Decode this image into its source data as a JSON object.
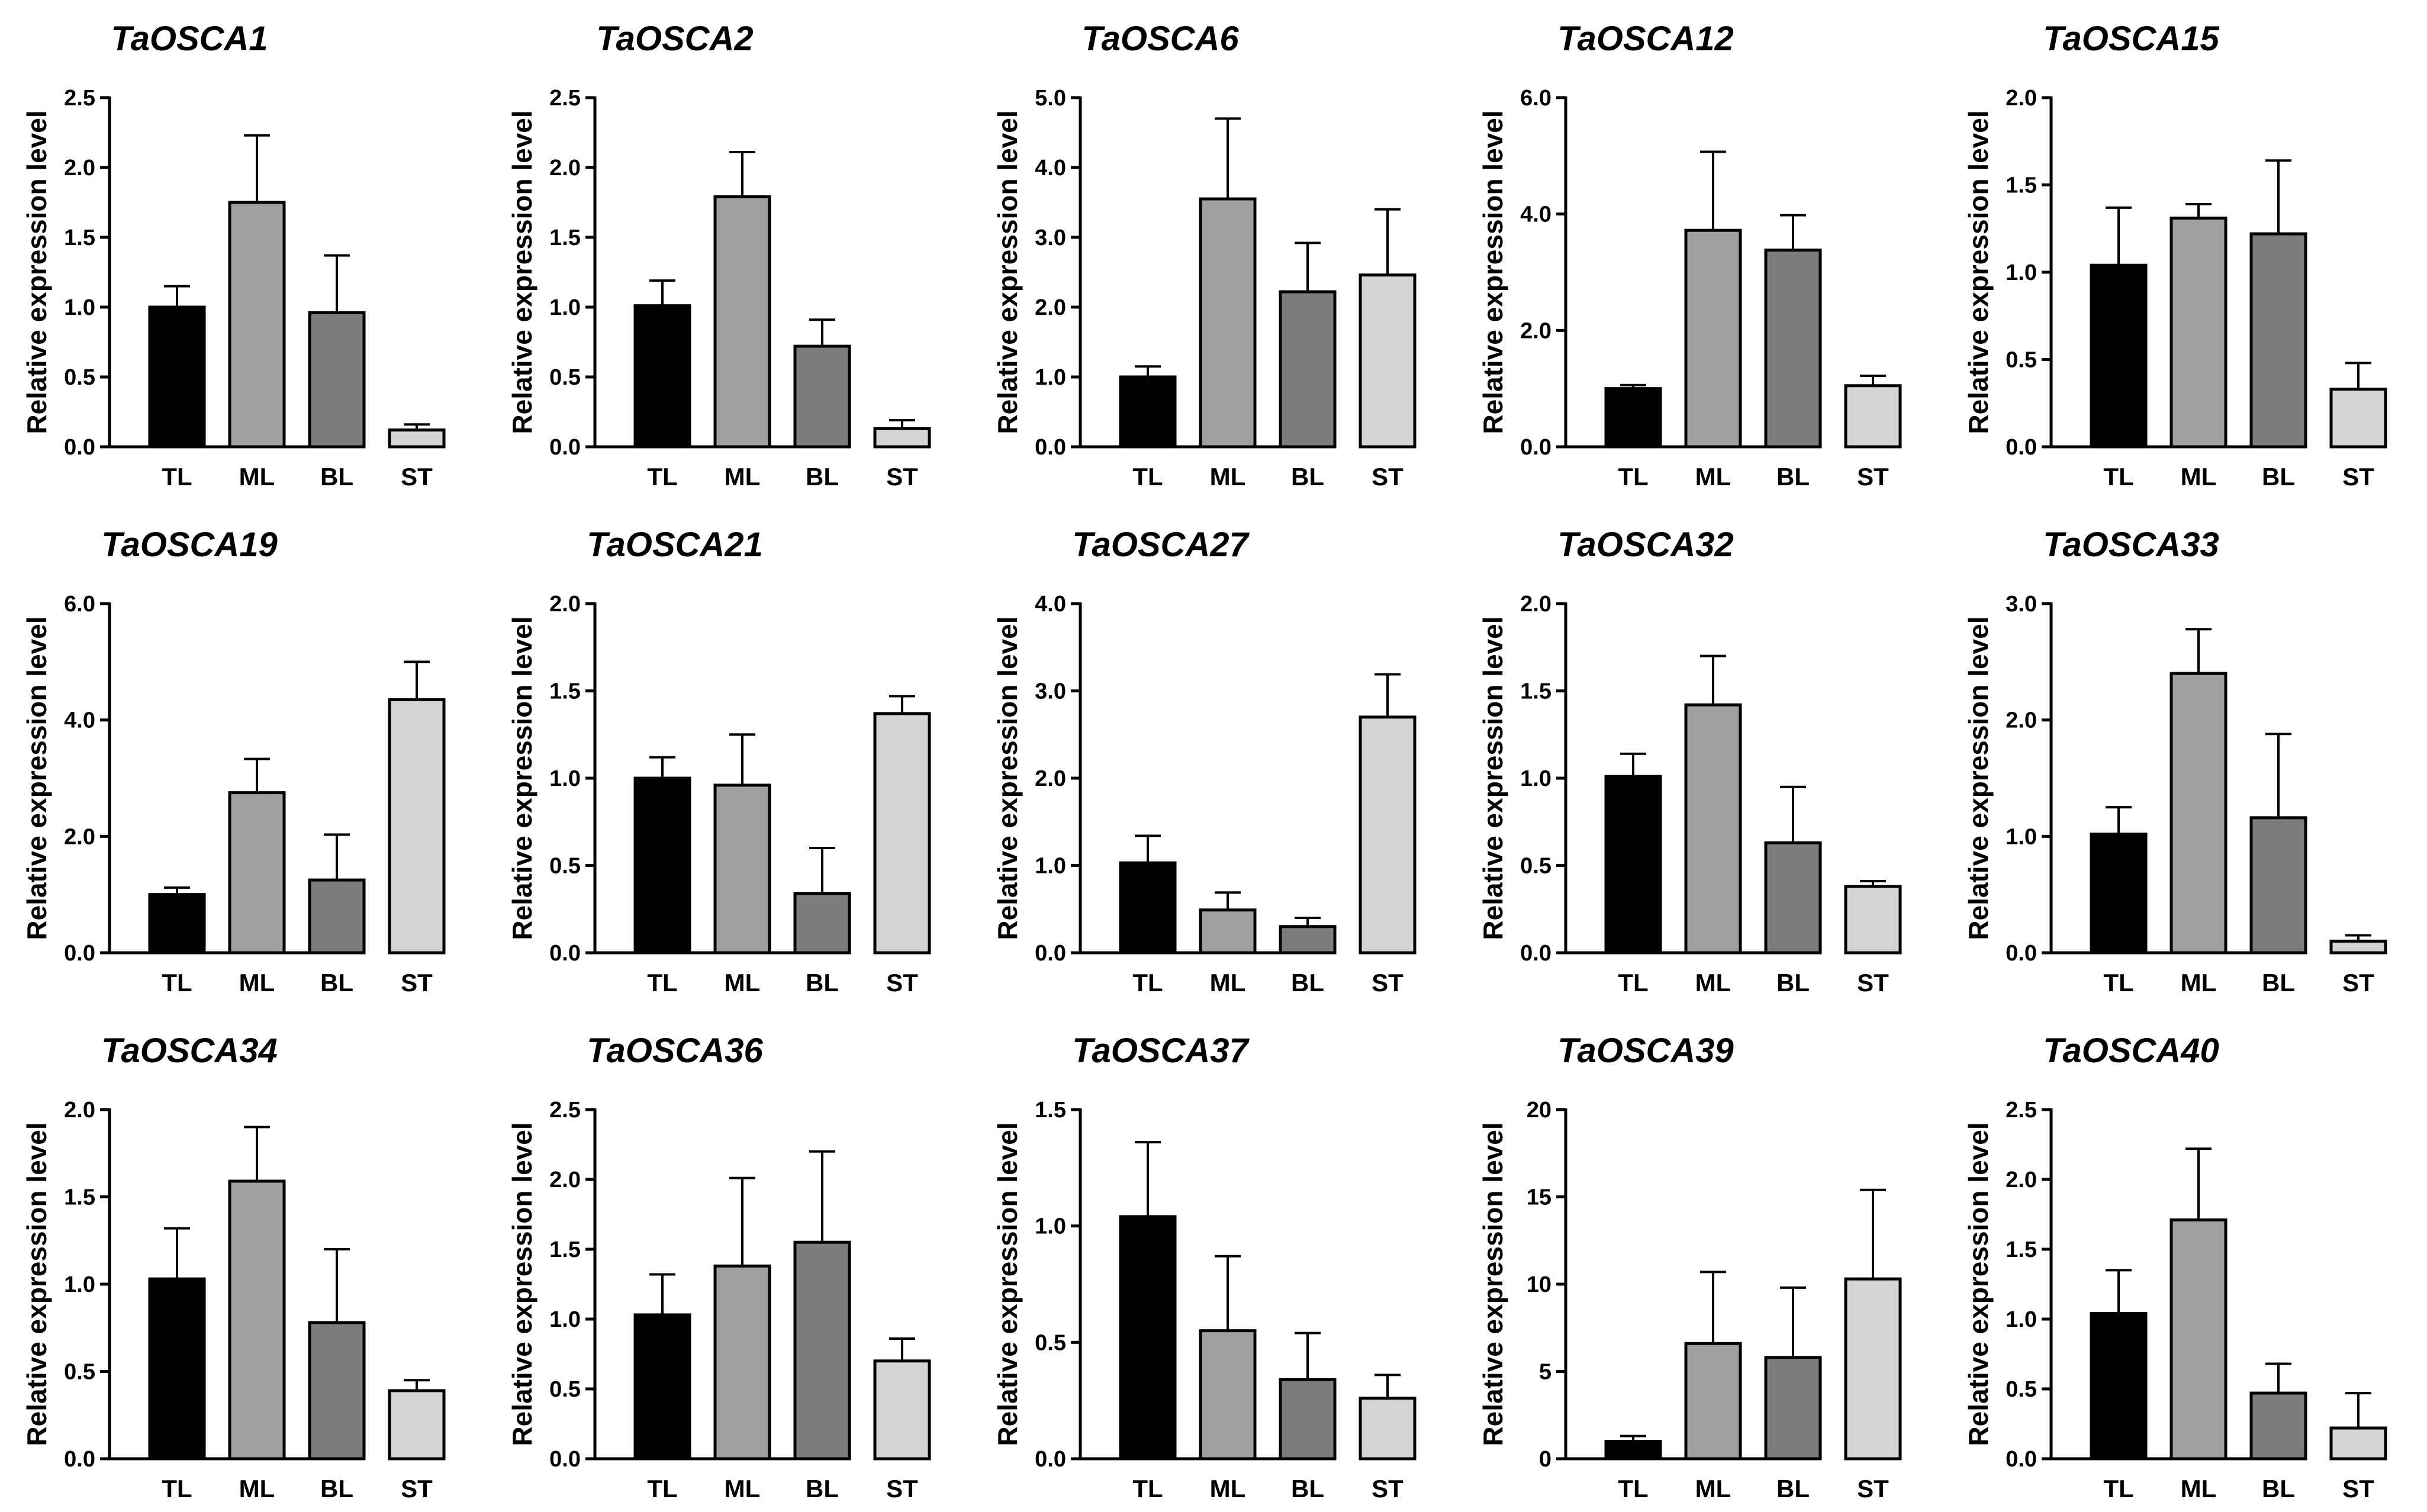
{
  "colors": {
    "TL": "#000000",
    "ML": "#a0a0a3",
    "BL": "#7c7c7e",
    "ST": "#d4d4d4",
    "axis": "#000000"
  },
  "chart_data": [
    {
      "type": "bar",
      "title": "TaOSCA1",
      "ylabel": "Relative expression level",
      "categories": [
        "TL",
        "ML",
        "BL",
        "ST"
      ],
      "values": [
        1.0,
        1.75,
        0.96,
        0.12
      ],
      "errors": [
        0.15,
        0.48,
        0.41,
        0.04
      ],
      "ylim": [
        0,
        2.5
      ],
      "yticks": [
        "0.0",
        "0.5",
        "1.0",
        "1.5",
        "2.0",
        "2.5"
      ]
    },
    {
      "type": "bar",
      "title": "TaOSCA2",
      "ylabel": "Relative expression level",
      "categories": [
        "TL",
        "ML",
        "BL",
        "ST"
      ],
      "values": [
        1.01,
        1.79,
        0.72,
        0.13
      ],
      "errors": [
        0.18,
        0.32,
        0.19,
        0.06
      ],
      "ylim": [
        0,
        2.5
      ],
      "yticks": [
        "0.0",
        "0.5",
        "1.0",
        "1.5",
        "2.0",
        "2.5"
      ]
    },
    {
      "type": "bar",
      "title": "TaOSCA6",
      "ylabel": "Relative expression level",
      "categories": [
        "TL",
        "ML",
        "BL",
        "ST"
      ],
      "values": [
        1.0,
        3.55,
        2.22,
        2.46
      ],
      "errors": [
        0.15,
        1.15,
        0.7,
        0.94
      ],
      "ylim": [
        0,
        5
      ],
      "yticks": [
        "0.0",
        "1.0",
        "2.0",
        "3.0",
        "4.0",
        "5.0"
      ]
    },
    {
      "type": "bar",
      "title": "TaOSCA12",
      "ylabel": "Relative expression level",
      "categories": [
        "TL",
        "ML",
        "BL",
        "ST"
      ],
      "values": [
        1.0,
        3.72,
        3.38,
        1.05
      ],
      "errors": [
        0.06,
        1.35,
        0.6,
        0.17
      ],
      "ylim": [
        0,
        6
      ],
      "yticks": [
        "0.0",
        "2.0",
        "4.0",
        "6.0"
      ]
    },
    {
      "type": "bar",
      "title": "TaOSCA15",
      "ylabel": "Relative expression level",
      "categories": [
        "TL",
        "ML",
        "BL",
        "ST"
      ],
      "values": [
        1.04,
        1.31,
        1.22,
        0.33
      ],
      "errors": [
        0.33,
        0.08,
        0.42,
        0.15
      ],
      "ylim": [
        0,
        2
      ],
      "yticks": [
        "0.0",
        "0.5",
        "1.0",
        "1.5",
        "2.0"
      ]
    },
    {
      "type": "bar",
      "title": "TaOSCA19",
      "ylabel": "Relative expression level",
      "categories": [
        "TL",
        "ML",
        "BL",
        "ST"
      ],
      "values": [
        1.0,
        2.75,
        1.25,
        4.35
      ],
      "errors": [
        0.12,
        0.58,
        0.78,
        0.65
      ],
      "ylim": [
        0,
        6
      ],
      "yticks": [
        "0.0",
        "2.0",
        "4.0",
        "6.0"
      ]
    },
    {
      "type": "bar",
      "title": "TaOSCA21",
      "ylabel": "Relative expression level",
      "categories": [
        "TL",
        "ML",
        "BL",
        "ST"
      ],
      "values": [
        1.0,
        0.96,
        0.34,
        1.37
      ],
      "errors": [
        0.12,
        0.29,
        0.26,
        0.1
      ],
      "ylim": [
        0,
        2
      ],
      "yticks": [
        "0.0",
        "0.5",
        "1.0",
        "1.5",
        "2.0"
      ]
    },
    {
      "type": "bar",
      "title": "TaOSCA27",
      "ylabel": "Relative expression level",
      "categories": [
        "TL",
        "ML",
        "BL",
        "ST"
      ],
      "values": [
        1.03,
        0.49,
        0.3,
        2.7
      ],
      "errors": [
        0.31,
        0.2,
        0.1,
        0.49
      ],
      "ylim": [
        0,
        4
      ],
      "yticks": [
        "0.0",
        "1.0",
        "2.0",
        "3.0",
        "4.0"
      ]
    },
    {
      "type": "bar",
      "title": "TaOSCA32",
      "ylabel": "Relative expression level",
      "categories": [
        "TL",
        "ML",
        "BL",
        "ST"
      ],
      "values": [
        1.01,
        1.42,
        0.63,
        0.38
      ],
      "errors": [
        0.13,
        0.28,
        0.32,
        0.03
      ],
      "ylim": [
        0,
        2
      ],
      "yticks": [
        "0.0",
        "0.5",
        "1.0",
        "1.5",
        "2.0"
      ]
    },
    {
      "type": "bar",
      "title": "TaOSCA33",
      "ylabel": "Relative expression level",
      "categories": [
        "TL",
        "ML",
        "BL",
        "ST"
      ],
      "values": [
        1.02,
        2.4,
        1.16,
        0.1
      ],
      "errors": [
        0.23,
        0.38,
        0.72,
        0.05
      ],
      "ylim": [
        0,
        3
      ],
      "yticks": [
        "0.0",
        "1.0",
        "2.0",
        "3.0"
      ]
    },
    {
      "type": "bar",
      "title": "TaOSCA34",
      "ylabel": "Relative expression level",
      "categories": [
        "TL",
        "ML",
        "BL",
        "ST"
      ],
      "values": [
        1.03,
        1.59,
        0.78,
        0.39
      ],
      "errors": [
        0.29,
        0.31,
        0.42,
        0.06
      ],
      "ylim": [
        0,
        2
      ],
      "yticks": [
        "0.0",
        "0.5",
        "1.0",
        "1.5",
        "2.0"
      ]
    },
    {
      "type": "bar",
      "title": "TaOSCA36",
      "ylabel": "Relative expression level",
      "categories": [
        "TL",
        "ML",
        "BL",
        "ST"
      ],
      "values": [
        1.03,
        1.38,
        1.55,
        0.7
      ],
      "errors": [
        0.29,
        0.63,
        0.65,
        0.16
      ],
      "ylim": [
        0,
        2.5
      ],
      "yticks": [
        "0.0",
        "0.5",
        "1.0",
        "1.5",
        "2.0",
        "2.5"
      ]
    },
    {
      "type": "bar",
      "title": "TaOSCA37",
      "ylabel": "Relative expression level",
      "categories": [
        "TL",
        "ML",
        "BL",
        "ST"
      ],
      "values": [
        1.04,
        0.55,
        0.34,
        0.26
      ],
      "errors": [
        0.32,
        0.32,
        0.2,
        0.1
      ],
      "ylim": [
        0,
        1.5
      ],
      "yticks": [
        "0.0",
        "0.5",
        "1.0",
        "1.5"
      ]
    },
    {
      "type": "bar",
      "title": "TaOSCA39",
      "ylabel": "Relative expression level",
      "categories": [
        "TL",
        "ML",
        "BL",
        "ST"
      ],
      "values": [
        1.0,
        6.6,
        5.8,
        10.3
      ],
      "errors": [
        0.3,
        4.1,
        4.0,
        5.1
      ],
      "ylim": [
        0,
        20
      ],
      "yticks": [
        "0",
        "5",
        "10",
        "15",
        "20"
      ]
    },
    {
      "type": "bar",
      "title": "TaOSCA40",
      "ylabel": "Relative expression level",
      "categories": [
        "TL",
        "ML",
        "BL",
        "ST"
      ],
      "values": [
        1.04,
        1.71,
        0.47,
        0.22
      ],
      "errors": [
        0.31,
        0.51,
        0.21,
        0.25
      ],
      "ylim": [
        0,
        2.5
      ],
      "yticks": [
        "0.0",
        "0.5",
        "1.0",
        "1.5",
        "2.0",
        "2.5"
      ]
    }
  ]
}
